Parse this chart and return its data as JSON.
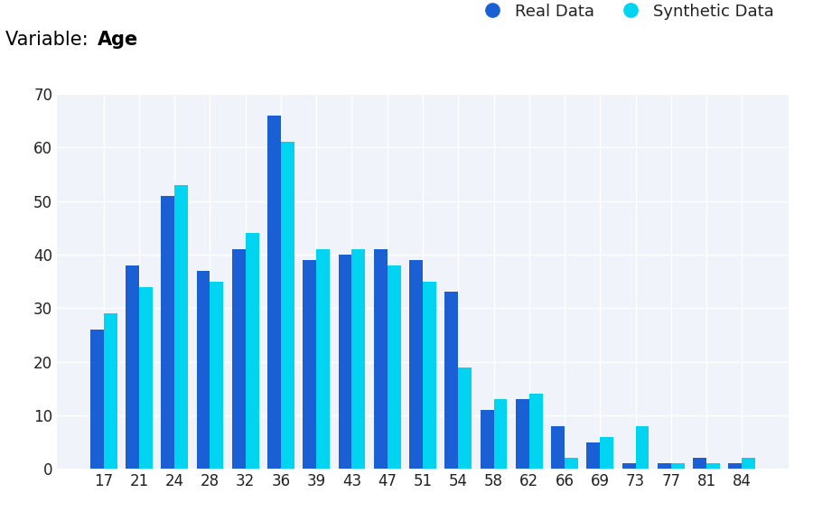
{
  "categories": [
    17,
    21,
    24,
    28,
    32,
    36,
    39,
    43,
    47,
    51,
    54,
    58,
    62,
    66,
    69,
    73,
    77,
    81,
    84
  ],
  "real_data": [
    26,
    38,
    51,
    37,
    41,
    66,
    39,
    40,
    41,
    39,
    33,
    11,
    13,
    8,
    5,
    1,
    1,
    2,
    1
  ],
  "synthetic_data": [
    29,
    34,
    53,
    35,
    44,
    61,
    41,
    41,
    38,
    35,
    19,
    13,
    14,
    2,
    6,
    8,
    1,
    1,
    2
  ],
  "real_color": "#1a5fd4",
  "synthetic_color": "#00d4f0",
  "title_prefix": "Variable: ",
  "title_bold": "Age",
  "legend_real": "Real Data",
  "legend_synthetic": "Synthetic Data",
  "ylim": [
    0,
    70
  ],
  "yticks": [
    0,
    10,
    20,
    30,
    40,
    50,
    60,
    70
  ],
  "background_color": "#ffffff",
  "plot_bg_color": "#f0f4fa",
  "grid_color": "#ffffff",
  "bar_width": 0.38,
  "title_fontsize": 15,
  "legend_fontsize": 13,
  "tick_fontsize": 12
}
